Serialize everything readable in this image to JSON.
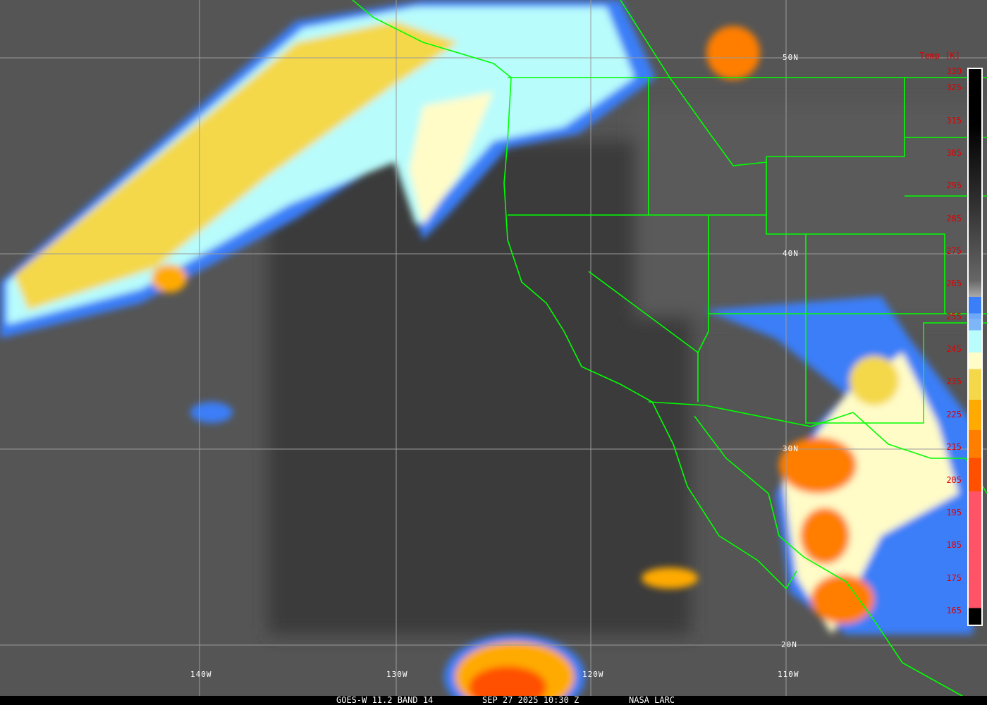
{
  "caption": {
    "satellite": "GOES-W 11.2 BAND 14",
    "datetime": "SEP 27 2025 10:30 Z",
    "agency": "NASA LARC"
  },
  "colorbar": {
    "title": "Temp [K]",
    "ticks": [
      "330",
      "325",
      "315",
      "305",
      "295",
      "285",
      "275",
      "265",
      "255",
      "245",
      "235",
      "225",
      "215",
      "205",
      "195",
      "185",
      "175",
      "165"
    ],
    "colors": [
      "#000000",
      "#3a7ef8",
      "#7fb6f8",
      "#b8fcfc",
      "#fffcc8",
      "#f4d84a",
      "#ffaa00",
      "#ff7e00",
      "#ff5000",
      "#ff5468"
    ]
  },
  "grid": {
    "lat_labels": [
      "50N",
      "40N",
      "30N",
      "20N"
    ],
    "lon_labels": [
      "140W",
      "130W",
      "120W",
      "110W"
    ],
    "line_color": "#9a9a9a",
    "border_color": "#00ff00"
  }
}
